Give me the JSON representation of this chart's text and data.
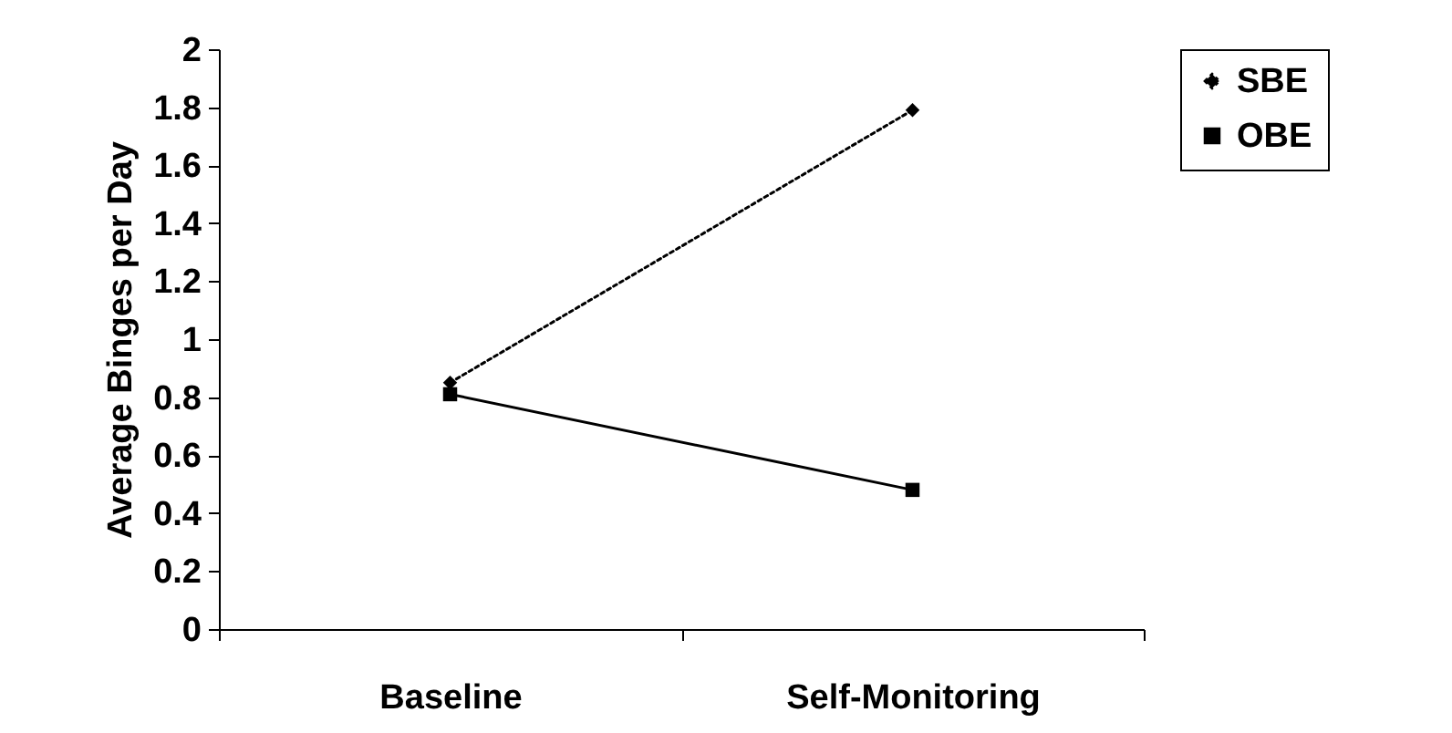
{
  "chart_data": {
    "type": "line",
    "ylabel": "Average Binges per Day",
    "categories": [
      "Baseline",
      "Self-Monitoring"
    ],
    "series": [
      {
        "name": "SBE",
        "color": "#000000",
        "values": [
          0.85,
          1.79
        ],
        "marker": "diamond",
        "line_style": "dotted"
      },
      {
        "name": "OBE",
        "color": "#000000",
        "values": [
          0.81,
          0.48
        ],
        "marker": "square",
        "line_style": "solid"
      }
    ],
    "ylim": [
      0,
      2
    ],
    "yticks": [
      0,
      0.2,
      0.4,
      0.6,
      0.8,
      1,
      1.2,
      1.4,
      1.6,
      1.8,
      2
    ],
    "grid": false,
    "legend": "right"
  }
}
